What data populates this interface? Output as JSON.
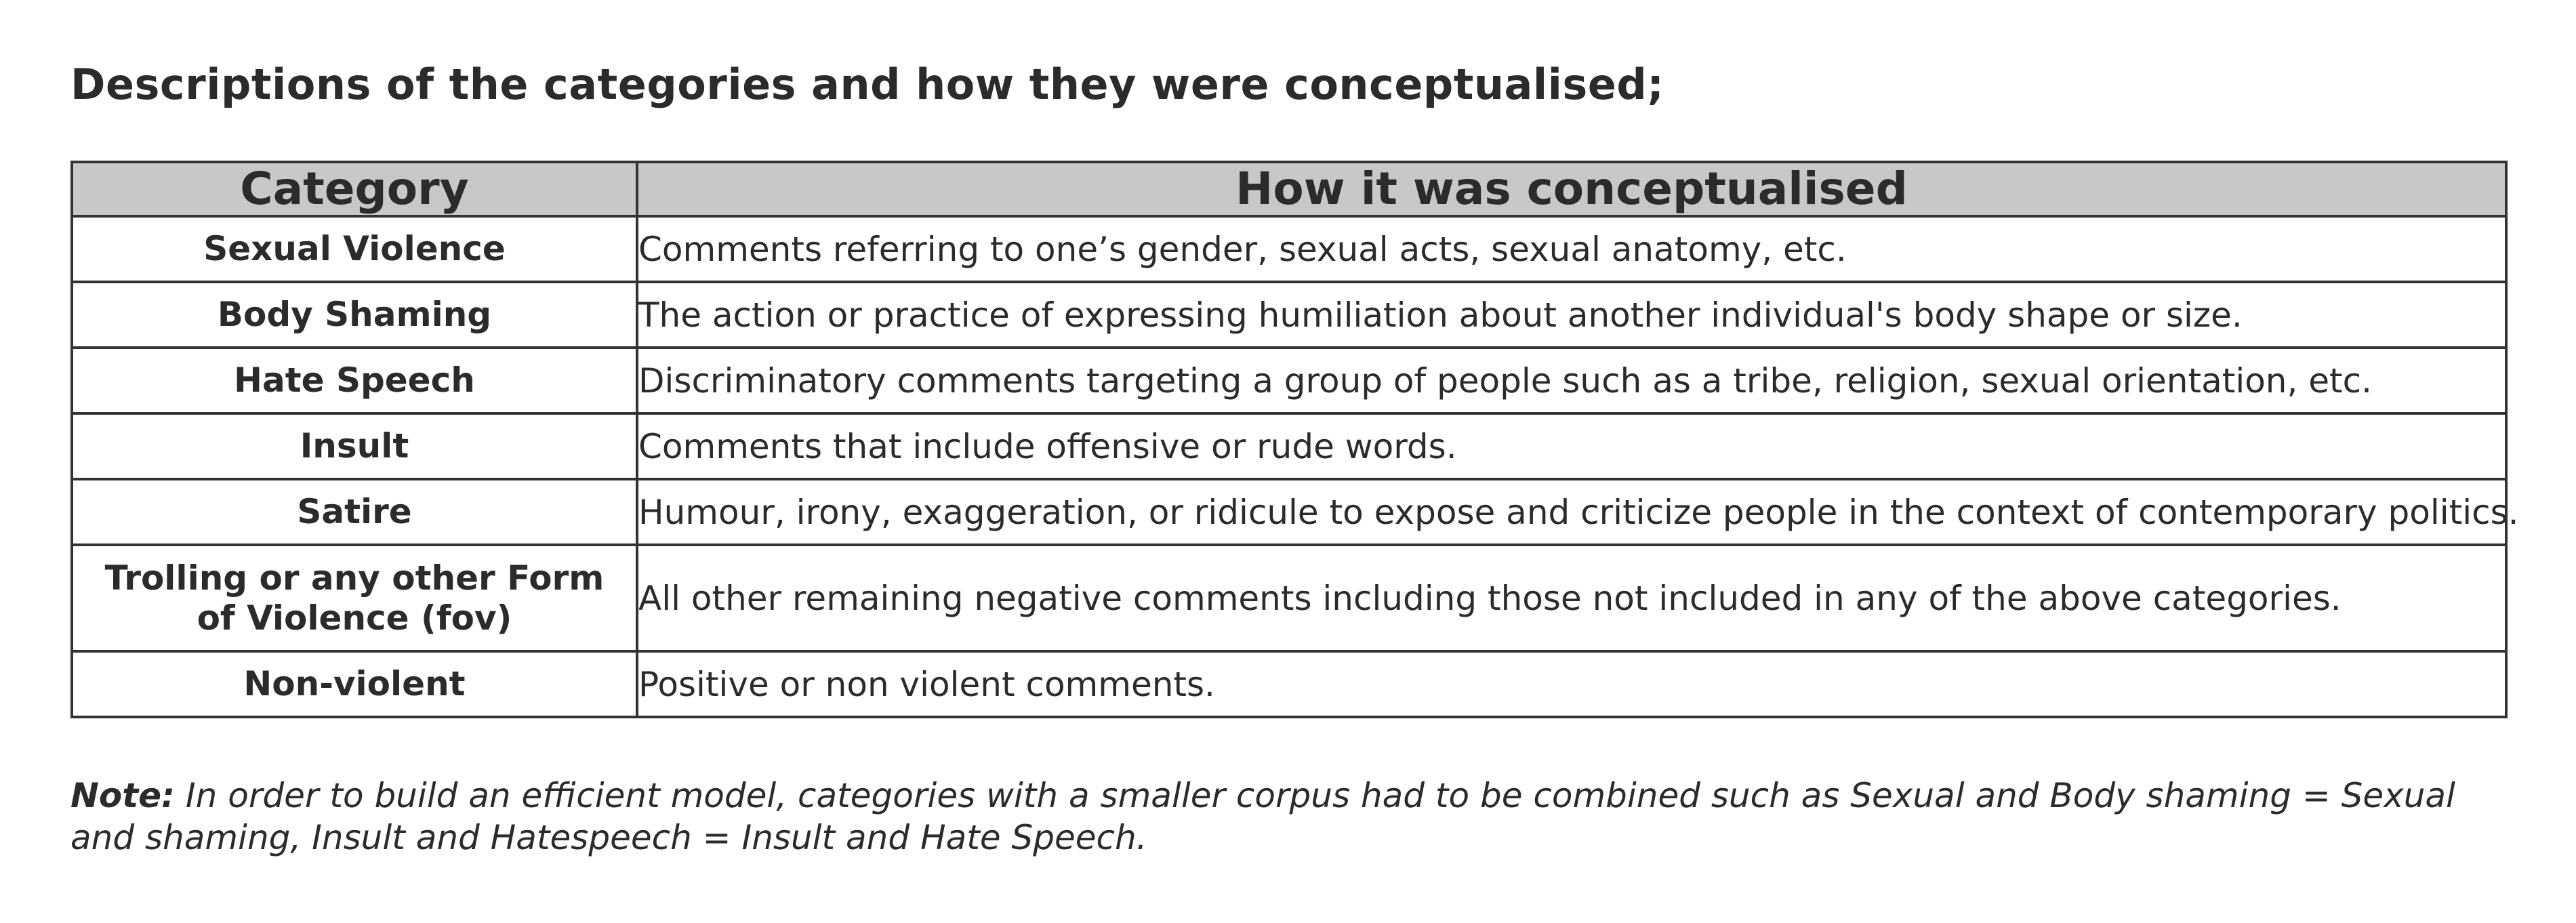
{
  "heading": "Descriptions of the categories and how they were conceptualised;",
  "table": {
    "headers": {
      "category": "Category",
      "conceptualised": "How it was conceptualised"
    },
    "rows": [
      {
        "category": "Sexual Violence",
        "description": "Comments referring to one’s gender, sexual acts, sexual anatomy, etc."
      },
      {
        "category": "Body Shaming",
        "description": "The action or practice of expressing humiliation about another individual's body shape or size."
      },
      {
        "category": "Hate Speech",
        "description": "Discriminatory comments targeting a group of people such as a tribe, religion, sexual orientation, etc."
      },
      {
        "category": "Insult",
        "description": "Comments that include offensive or rude words."
      },
      {
        "category": "Satire",
        "description": "Humour, irony, exaggeration, or ridicule to expose and criticize people in the context of contemporary politics."
      },
      {
        "category_line1": "Trolling or any other Form",
        "category_line2": "of Violence (fov)",
        "description": "All other remaining negative comments including those not included in any of the above categories."
      },
      {
        "category": "Non-violent",
        "description": "Positive or non violent comments."
      }
    ]
  },
  "note": {
    "label": "Note:",
    "text": "In order to build an efficient model, categories with a smaller corpus had to be combined such as Sexual and Body shaming = Sexual and shaming, Insult and Hatespeech = Insult and Hate Speech."
  },
  "colors": {
    "header_background": "#c8c8c8",
    "border": "#333333",
    "text": "#2b2b2b"
  }
}
